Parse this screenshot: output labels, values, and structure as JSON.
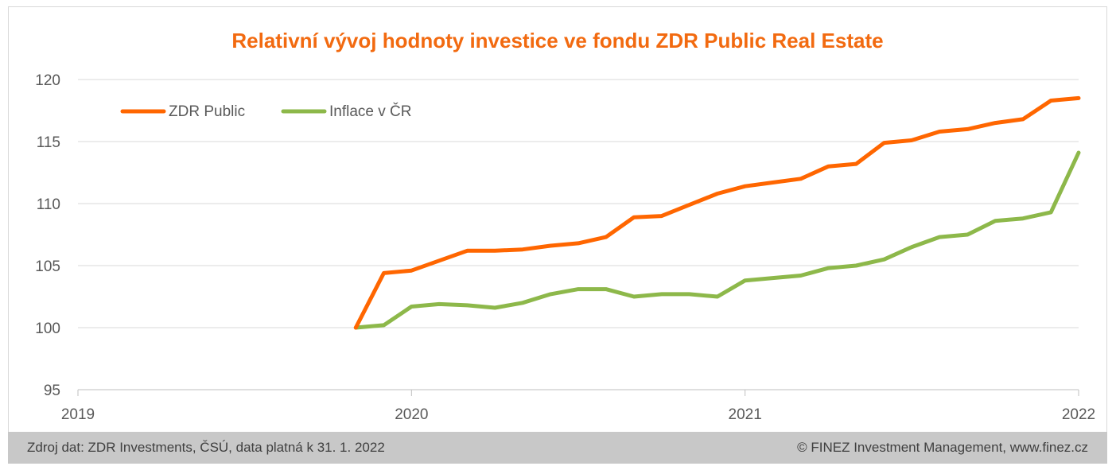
{
  "chart_data": {
    "type": "line",
    "title": "Relativní vývoj hodnoty investice ve fondu ZDR Public Real Estate",
    "xlabel": "",
    "ylabel": "",
    "ylim": [
      95,
      120
    ],
    "yticks": [
      "95",
      "100",
      "105",
      "110",
      "115",
      "120"
    ],
    "xlim": [
      2019,
      2022
    ],
    "xticks": [
      "2019",
      "2020",
      "2021",
      "2022"
    ],
    "grid": "horizontal",
    "legend_position": "top-left",
    "series": [
      {
        "name": "ZDR Public",
        "color": "#ff6600",
        "x": [
          2019.833,
          2019.917,
          2020.0,
          2020.083,
          2020.167,
          2020.25,
          2020.333,
          2020.417,
          2020.5,
          2020.583,
          2020.667,
          2020.75,
          2020.833,
          2020.917,
          2021.0,
          2021.083,
          2021.167,
          2021.25,
          2021.333,
          2021.417,
          2021.5,
          2021.583,
          2021.667,
          2021.75,
          2021.833,
          2021.917,
          2022.0
        ],
        "values": [
          100.0,
          104.4,
          104.6,
          105.4,
          106.2,
          106.2,
          106.3,
          106.6,
          106.8,
          107.3,
          108.9,
          109.0,
          109.9,
          110.8,
          111.4,
          111.7,
          112.0,
          113.0,
          113.2,
          114.9,
          115.1,
          115.8,
          116.0,
          116.5,
          116.8,
          118.3,
          118.5
        ]
      },
      {
        "name": "Inflace v ČR",
        "color": "#8db84a",
        "x": [
          2019.833,
          2019.917,
          2020.0,
          2020.083,
          2020.167,
          2020.25,
          2020.333,
          2020.417,
          2020.5,
          2020.583,
          2020.667,
          2020.75,
          2020.833,
          2020.917,
          2021.0,
          2021.083,
          2021.167,
          2021.25,
          2021.333,
          2021.417,
          2021.5,
          2021.583,
          2021.667,
          2021.75,
          2021.833,
          2021.917,
          2022.0
        ],
        "values": [
          100.0,
          100.2,
          101.7,
          101.9,
          101.8,
          101.6,
          102.0,
          102.7,
          103.1,
          103.1,
          102.5,
          102.7,
          102.7,
          102.5,
          103.8,
          104.0,
          104.2,
          104.8,
          105.0,
          105.5,
          106.5,
          107.3,
          107.5,
          108.6,
          108.8,
          109.3,
          114.1
        ]
      }
    ]
  },
  "footer": {
    "source": "Zdroj dat: ZDR Investments, ČSÚ, data platná k 31. 1. 2022",
    "copyright": "© FINEZ Investment Management, www.finez.cz"
  }
}
